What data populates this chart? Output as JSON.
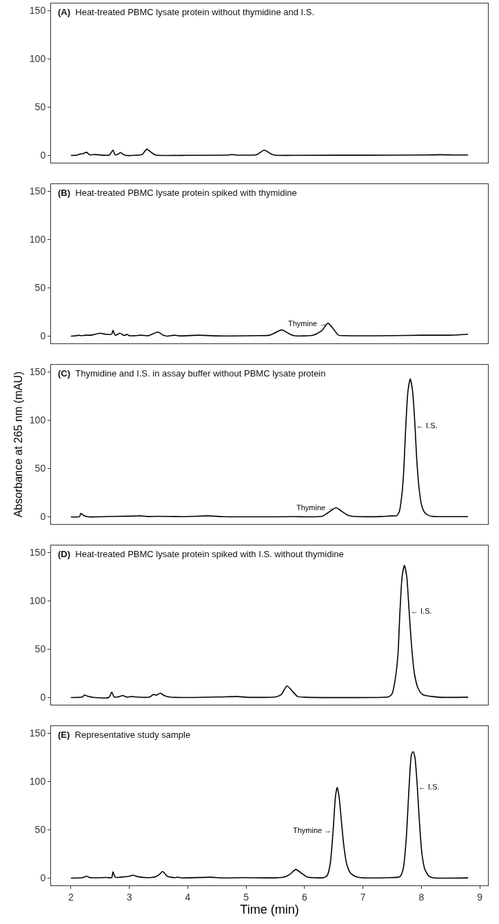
{
  "chart_data": [
    {
      "type": "line",
      "title": "(A) Heat-treated PBMC lysate protein without thymidine and I.S.",
      "xlim": [
        1.66,
        9.14
      ],
      "ylim": [
        -7.5,
        157.5
      ],
      "yticks": [
        0,
        50,
        100,
        150
      ],
      "tick_labels": "y",
      "x": [
        2.0,
        2.1,
        2.16,
        2.21,
        2.27,
        2.32,
        2.43,
        2.55,
        2.66,
        2.72,
        2.76,
        2.81,
        2.85,
        2.9,
        2.95,
        3.1,
        3.22,
        3.3,
        3.38,
        3.45,
        3.6,
        4.0,
        4.7,
        4.75,
        4.85,
        5.15,
        5.19,
        5.31,
        5.43,
        5.5,
        6.0,
        7.0,
        8.0,
        8.33,
        8.6,
        8.8
      ],
      "series": [
        {
          "color": "#000000",
          "values": [
            0,
            0.3,
            1.5,
            2,
            3.3,
            0.8,
            1,
            0.3,
            0.5,
            5.5,
            0.5,
            1.5,
            3,
            1,
            0,
            0.2,
            1,
            6.5,
            3,
            0.5,
            0,
            0.2,
            0.5,
            1,
            0.4,
            0.5,
            1,
            5.5,
            1.5,
            0.3,
            0.2,
            0.3,
            0.5,
            0.8,
            0.5,
            0.5
          ]
        }
      ]
    },
    {
      "type": "line",
      "title": "(B) Heat-treated PBMC lysate protein spiked with thymidine",
      "xlim": [
        1.66,
        9.14
      ],
      "ylim": [
        -7.5,
        157.5
      ],
      "yticks": [
        0,
        50,
        100,
        150
      ],
      "tick_labels": "y",
      "annotations": [
        {
          "text": "Thymine →",
          "x": 6.4,
          "y": 13.5
        }
      ],
      "x": [
        2.0,
        2.1,
        2.13,
        2.18,
        2.25,
        2.35,
        2.5,
        2.6,
        2.7,
        2.72,
        2.76,
        2.84,
        2.9,
        2.95,
        2.96,
        3.0,
        3.1,
        3.2,
        3.33,
        3.49,
        3.58,
        3.65,
        3.77,
        3.85,
        4.2,
        4.5,
        5.2,
        5.4,
        5.48,
        5.61,
        5.72,
        5.82,
        6.15,
        6.3,
        6.4,
        6.5,
        6.58,
        6.7,
        7.5,
        8.0,
        8.5,
        8.8
      ],
      "series": [
        {
          "color": "#000000",
          "values": [
            0,
            0.5,
            1,
            0.5,
            1,
            1,
            3,
            2,
            2,
            6,
            1,
            3,
            1,
            1.5,
            2,
            0.5,
            0.5,
            1,
            0.5,
            4.3,
            1,
            0,
            1,
            0.3,
            1,
            0.3,
            0.5,
            1,
            3,
            6.5,
            3,
            0.5,
            1,
            6,
            13.5,
            7,
            1,
            0.5,
            0.5,
            1,
            1,
            2
          ]
        }
      ]
    },
    {
      "type": "line",
      "title": "(C) Thymidine and I.S. in assay buffer without PBMC lysate protein",
      "ylabel": "Absorbance at 265 nm (mAU)",
      "xlim": [
        1.66,
        9.14
      ],
      "ylim": [
        -7.5,
        157.5
      ],
      "yticks": [
        0,
        50,
        100,
        150
      ],
      "tick_labels": "y",
      "annotations": [
        {
          "text": "Thymine →",
          "x": 6.54,
          "y": 9.5
        },
        {
          "text": "← I.S.",
          "x": 7.89,
          "y": 95
        }
      ],
      "x": [
        2.0,
        2.15,
        2.17,
        2.23,
        2.3,
        2.8,
        3.1,
        3.2,
        3.3,
        3.5,
        3.9,
        4.35,
        4.6,
        5.8,
        6.3,
        6.42,
        6.54,
        6.63,
        6.73,
        6.83,
        7.3,
        7.5,
        7.57,
        7.62,
        7.67,
        7.7,
        7.73,
        7.77,
        7.81,
        7.85,
        7.89,
        7.92,
        7.96,
        8.0,
        8.05,
        8.12,
        8.22,
        8.4,
        8.8
      ],
      "series": [
        {
          "color": "#000000",
          "values": [
            0,
            0.3,
            3.5,
            1,
            0,
            0.5,
            0.8,
            1,
            0.3,
            0.5,
            0.2,
            1,
            0.2,
            0.2,
            0.5,
            5,
            9.5,
            6,
            2,
            0.5,
            0.3,
            1,
            1,
            5,
            25,
            50,
            90,
            130,
            143,
            130,
            95,
            60,
            30,
            13,
            5,
            1.5,
            0.3,
            0.2,
            0.2
          ]
        }
      ]
    },
    {
      "type": "line",
      "title": "(D) Heat-treated PBMC lysate protein spiked with I.S. without thymidine",
      "xlim": [
        1.66,
        9.14
      ],
      "ylim": [
        -7.5,
        157.5
      ],
      "yticks": [
        0,
        50,
        100,
        150
      ],
      "tick_labels": "y",
      "annotations": [
        {
          "text": "← I.S.",
          "x": 7.79,
          "y": 90
        }
      ],
      "x": [
        2.0,
        2.2,
        2.23,
        2.3,
        2.4,
        2.65,
        2.7,
        2.74,
        2.8,
        2.89,
        2.95,
        3.06,
        3.12,
        3.35,
        3.41,
        3.47,
        3.53,
        3.6,
        3.7,
        4.5,
        4.85,
        5.0,
        5.5,
        5.6,
        5.7,
        5.8,
        5.88,
        6.0,
        7.4,
        7.45,
        7.5,
        7.55,
        7.6,
        7.63,
        7.67,
        7.71,
        7.75,
        7.79,
        7.83,
        7.88,
        7.94,
        8.02,
        8.3,
        8.8
      ],
      "series": [
        {
          "color": "#000000",
          "values": [
            0,
            0.5,
            2.5,
            1,
            0,
            0,
            5.5,
            0.5,
            0.5,
            2,
            0.5,
            1,
            0.5,
            0.5,
            3,
            2.5,
            4.5,
            2,
            0.3,
            0.5,
            1,
            0.3,
            0.5,
            3,
            12,
            6,
            1,
            0.3,
            0.3,
            1,
            4,
            18,
            45,
            85,
            125,
            137,
            125,
            90,
            55,
            25,
            10,
            3,
            0.3,
            0.3
          ]
        }
      ]
    },
    {
      "type": "line",
      "title": "(E) Representative study sample",
      "xlabel": "Time (min)",
      "xlim": [
        1.66,
        9.14
      ],
      "ylim": [
        -7.5,
        157.5
      ],
      "xticks": [
        2,
        3,
        4,
        5,
        6,
        7,
        8,
        9
      ],
      "yticks": [
        0,
        50,
        100,
        150
      ],
      "annotations": [
        {
          "text": "Thymine →",
          "x": 6.49,
          "y": 50
        },
        {
          "text": "← I.S.",
          "x": 7.93,
          "y": 95
        }
      ],
      "x": [
        2.0,
        2.2,
        2.27,
        2.33,
        2.6,
        2.7,
        2.72,
        2.76,
        2.85,
        3.0,
        3.06,
        3.15,
        3.3,
        3.45,
        3.52,
        3.57,
        3.65,
        3.78,
        3.82,
        3.9,
        4.4,
        4.6,
        4.95,
        5.5,
        5.65,
        5.75,
        5.85,
        5.95,
        6.05,
        6.2,
        6.33,
        6.39,
        6.44,
        6.49,
        6.53,
        6.56,
        6.59,
        6.63,
        6.67,
        6.72,
        6.79,
        6.9,
        7.0,
        7.45,
        7.6,
        7.64,
        7.69,
        7.74,
        7.79,
        7.83,
        7.86,
        7.89,
        7.93,
        7.97,
        8.01,
        8.06,
        8.13,
        8.2,
        8.8
      ],
      "series": [
        {
          "color": "#000000",
          "values": [
            0,
            0.5,
            2,
            0.5,
            0.7,
            0.7,
            6.5,
            1,
            1,
            2,
            3,
            1.5,
            0.5,
            1.5,
            4,
            7,
            2,
            0.5,
            1,
            0.2,
            1,
            0.2,
            0.5,
            0.3,
            1,
            4,
            9,
            5,
            1,
            0.3,
            0.5,
            3,
            15,
            50,
            85,
            94,
            85,
            60,
            35,
            15,
            5,
            1,
            0.3,
            0.5,
            1,
            2,
            10,
            40,
            95,
            128,
            131,
            125,
            95,
            55,
            25,
            9,
            2,
            0.4,
            0.3
          ]
        }
      ]
    }
  ]
}
